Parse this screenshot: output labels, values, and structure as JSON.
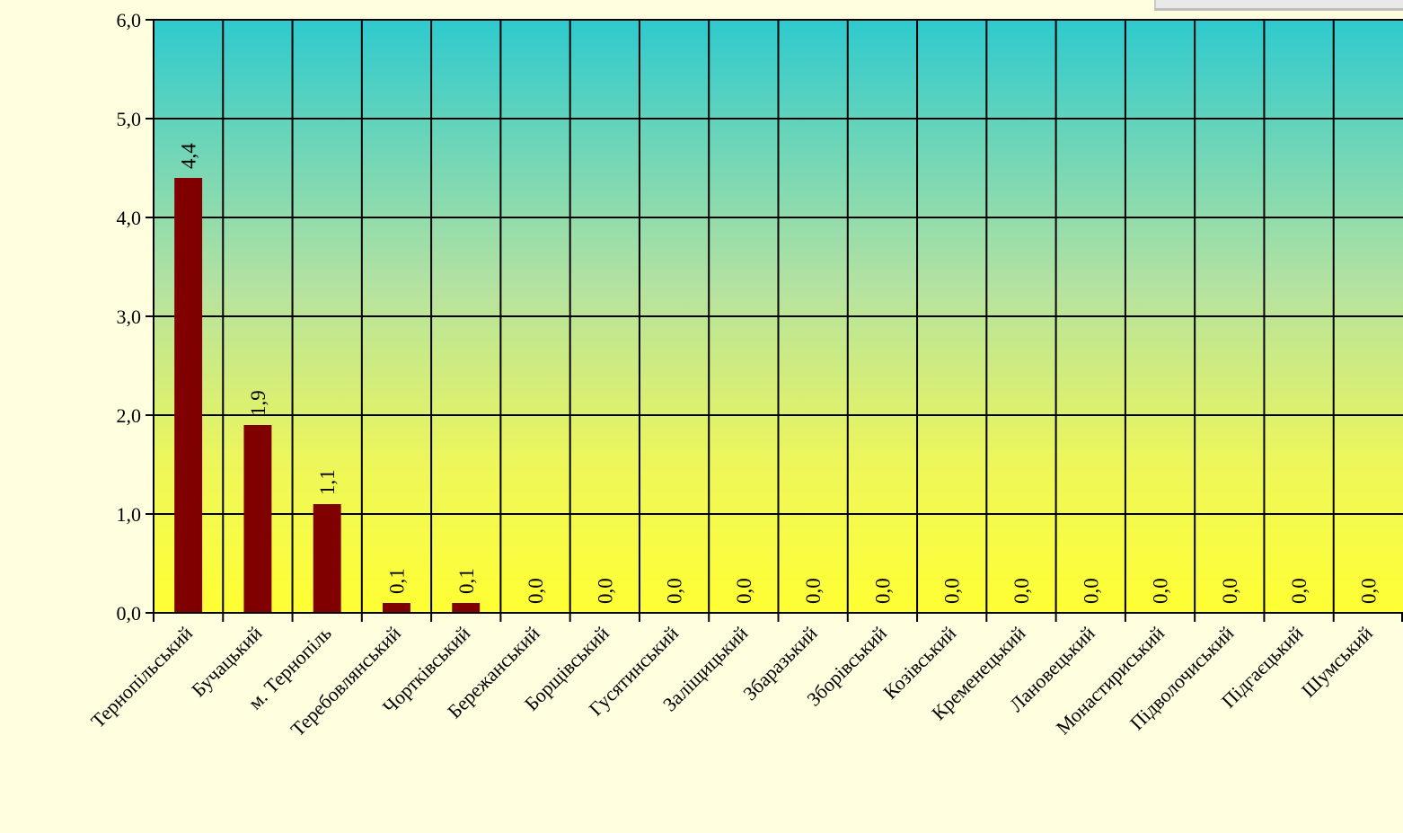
{
  "chart_data": {
    "type": "bar",
    "title": "",
    "xlabel": "",
    "ylabel": "",
    "ylim": [
      0,
      6
    ],
    "y_ticks": [
      "0,0",
      "1,0",
      "2,0",
      "3,0",
      "4,0",
      "5,0",
      "6,0"
    ],
    "grid": true,
    "categories": [
      "Тернопільський",
      "Бучацький",
      "м. Тернопіль",
      "Теребовлянський",
      "Чортківський",
      "Бережанський",
      "Борщівський",
      "Гусятинський",
      "Заліщицький",
      "Збаразький",
      "Зборівський",
      "Козівський",
      "Кременецький",
      "Лановецький",
      "Монастириський",
      "Підволочиський",
      "Підгаєцький",
      "Шумський"
    ],
    "values": [
      4.4,
      1.9,
      1.1,
      0.1,
      0.1,
      0,
      0,
      0,
      0,
      0,
      0,
      0,
      0,
      0,
      0,
      0,
      0,
      0
    ],
    "data_labels": [
      "4,4",
      "1,9",
      "1,1",
      "0,1",
      "0,1",
      "0,0",
      "0,0",
      "0,0",
      "0,0",
      "0,0",
      "0,0",
      "0,0",
      "0,0",
      "0,0",
      "0,0",
      "0,0",
      "0,0",
      "0,0"
    ],
    "colors": {
      "bar": "#800000",
      "plot_top": "#2ECACE",
      "plot_bottom": "#FFFF33",
      "gridline": "#000000",
      "page_background": "#FFFFE0"
    }
  }
}
